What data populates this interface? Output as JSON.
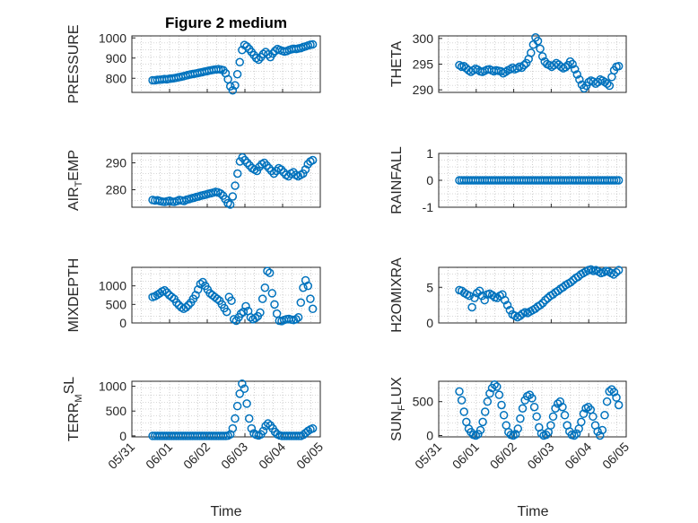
{
  "figure": {
    "title": "Figure 2 medium",
    "xlabel": "Time",
    "marker_color": "#0072BD",
    "axis_color": "#262626",
    "grid_color": "#b0b0b0"
  },
  "chart_data": [
    {
      "type": "scatter",
      "ylabel": "PRESSURE",
      "ylabel_sub": null,
      "xlim": [
        "05/31",
        "06/05"
      ],
      "ylim": [
        730,
        1010
      ],
      "yticks": [
        800,
        900,
        1000
      ],
      "x_day_range": [
        0.55,
        4.8
      ],
      "grid": true,
      "y": [
        790,
        790,
        792,
        793,
        794,
        796,
        795,
        797,
        799,
        800,
        802,
        805,
        807,
        810,
        813,
        816,
        819,
        821,
        823,
        825,
        828,
        830,
        833,
        835,
        838,
        840,
        842,
        844,
        845,
        843,
        840,
        825,
        795,
        760,
        740,
        765,
        820,
        880,
        940,
        965,
        958,
        945,
        930,
        915,
        900,
        892,
        905,
        920,
        930,
        918,
        905,
        922,
        935,
        945,
        940,
        936,
        932,
        935,
        940,
        944,
        946,
        945,
        948,
        950,
        955,
        958,
        962,
        966,
        968
      ]
    },
    {
      "type": "scatter",
      "ylabel": "THETA",
      "ylabel_sub": null,
      "xlim": [
        "05/31",
        "06/05"
      ],
      "ylim": [
        289.5,
        300.5
      ],
      "yticks": [
        290,
        295,
        300
      ],
      "x_day_range": [
        0.55,
        4.8
      ],
      "grid": true,
      "y": [
        294.8,
        294.5,
        294.6,
        294.2,
        293.8,
        293.5,
        293.8,
        294.1,
        293.9,
        293.6,
        293.5,
        293.7,
        293.9,
        294.0,
        293.8,
        293.6,
        293.8,
        293.7,
        293.6,
        293.2,
        293.5,
        293.8,
        294.0,
        294.3,
        294.0,
        294.2,
        294.5,
        294.3,
        294.8,
        295.2,
        296.0,
        297.2,
        298.8,
        300.2,
        299.5,
        298.0,
        296.5,
        295.5,
        295.0,
        294.8,
        294.5,
        294.8,
        295.2,
        294.9,
        294.5,
        294.2,
        294.4,
        294.8,
        295.5,
        295.0,
        294.0,
        293.0,
        292.0,
        291.0,
        290.3,
        290.8,
        291.5,
        291.8,
        291.6,
        291.2,
        291.5,
        292.0,
        291.8,
        291.5,
        291.2,
        290.8,
        292.5,
        293.8,
        294.5,
        294.6
      ]
    },
    {
      "type": "scatter",
      "ylabel": "AIR",
      "ylabel_sub": "T",
      "ylabel_suffix": "EMP",
      "xlim": [
        "05/31",
        "06/05"
      ],
      "ylim": [
        273.5,
        293.5
      ],
      "yticks": [
        280,
        290
      ],
      "x_day_range": [
        0.55,
        4.8
      ],
      "grid": true,
      "y": [
        276.2,
        276.0,
        276.1,
        275.8,
        275.6,
        275.5,
        275.7,
        275.9,
        275.6,
        275.5,
        275.8,
        276.2,
        276.0,
        275.8,
        276.3,
        276.5,
        276.8,
        277.0,
        277.3,
        277.5,
        277.8,
        278.0,
        278.2,
        278.5,
        278.7,
        278.9,
        279.2,
        279.0,
        278.6,
        277.8,
        276.5,
        275.0,
        274.5,
        277.5,
        281.5,
        286.0,
        290.5,
        292.0,
        291.0,
        290.0,
        289.0,
        288.0,
        287.5,
        287.0,
        288.5,
        289.5,
        290.0,
        289.0,
        288.0,
        287.0,
        286.0,
        287.0,
        288.0,
        287.5,
        286.5,
        285.5,
        285.0,
        286.0,
        286.5,
        285.5,
        285.0,
        285.5,
        286.0,
        287.5,
        289.5,
        290.5,
        291.0
      ]
    },
    {
      "type": "scatter",
      "ylabel": "RAINFALL",
      "ylabel_sub": null,
      "xlim": [
        "05/31",
        "06/05"
      ],
      "ylim": [
        -1,
        1
      ],
      "yticks": [
        -1,
        0,
        1
      ],
      "x_day_range": [
        0.55,
        4.8
      ],
      "grid": true,
      "constant_value": 0,
      "point_count": 70
    },
    {
      "type": "scatter",
      "ylabel": "MIXDEPTH",
      "ylabel_sub": null,
      "xlim": [
        "05/31",
        "06/05"
      ],
      "ylim": [
        0,
        1500
      ],
      "yticks": [
        0,
        500,
        1000
      ],
      "x_day_range": [
        0.55,
        4.8
      ],
      "grid": true,
      "y": [
        700,
        720,
        760,
        800,
        850,
        880,
        820,
        750,
        700,
        650,
        550,
        480,
        420,
        380,
        420,
        480,
        550,
        650,
        750,
        900,
        1050,
        1100,
        1000,
        900,
        800,
        750,
        700,
        650,
        600,
        500,
        400,
        300,
        700,
        600,
        100,
        60,
        150,
        250,
        300,
        450,
        320,
        150,
        100,
        130,
        180,
        280,
        650,
        950,
        1400,
        1350,
        800,
        500,
        250,
        60,
        50,
        80,
        100,
        110,
        90,
        80,
        100,
        150,
        550,
        950,
        1150,
        1000,
        650,
        380
      ]
    },
    {
      "type": "scatter",
      "ylabel": "H2OMIXRA",
      "ylabel_sub": null,
      "xlim": [
        "05/31",
        "06/05"
      ],
      "ylim": [
        0,
        7.8
      ],
      "yticks": [
        0,
        5
      ],
      "x_day_range": [
        0.55,
        4.8
      ],
      "grid": true,
      "y": [
        4.6,
        4.5,
        4.2,
        4.0,
        3.8,
        2.2,
        3.5,
        4.2,
        4.5,
        3.8,
        3.2,
        4.0,
        4.1,
        3.9,
        3.6,
        3.5,
        3.8,
        4.0,
        3.2,
        2.5,
        1.8,
        1.2,
        1.0,
        0.8,
        1.0,
        1.3,
        1.5,
        1.4,
        1.6,
        1.8,
        2.0,
        2.3,
        2.5,
        2.8,
        3.2,
        3.5,
        3.8,
        4.0,
        4.3,
        4.5,
        4.8,
        5.0,
        5.3,
        5.5,
        5.7,
        6.0,
        6.3,
        6.5,
        6.8,
        7.0,
        7.2,
        7.4,
        7.5,
        7.3,
        7.4,
        7.2,
        7.0,
        7.1,
        7.3,
        7.2,
        7.0,
        6.8,
        7.1,
        7.4
      ]
    },
    {
      "type": "scatter",
      "ylabel": "TERR",
      "ylabel_sub": "M",
      "ylabel_sup": "SL",
      "xlim": [
        "05/31",
        "06/05"
      ],
      "ylim": [
        -20,
        1100
      ],
      "yticks": [
        0,
        500,
        1000
      ],
      "x_day_range": [
        0.55,
        4.8
      ],
      "grid": true,
      "y": [
        0,
        0,
        0,
        0,
        0,
        0,
        0,
        0,
        0,
        0,
        0,
        0,
        0,
        0,
        0,
        0,
        0,
        0,
        0,
        0,
        0,
        0,
        0,
        0,
        0,
        0,
        0,
        0,
        0,
        0,
        0,
        0,
        5,
        30,
        150,
        350,
        600,
        850,
        1050,
        950,
        650,
        350,
        150,
        50,
        20,
        10,
        30,
        100,
        200,
        250,
        210,
        150,
        80,
        30,
        10,
        0,
        0,
        0,
        0,
        0,
        0,
        0,
        0,
        0,
        20,
        60,
        100,
        130,
        150
      ]
    },
    {
      "type": "scatter",
      "ylabel": "SUN",
      "ylabel_sub": "F",
      "ylabel_suffix": "LUX",
      "xlim": [
        "05/31",
        "06/05"
      ],
      "ylim": [
        -20,
        800
      ],
      "yticks": [
        0,
        500
      ],
      "x_day_range": [
        0.55,
        4.8
      ],
      "grid": true,
      "y": [
        650,
        520,
        350,
        200,
        100,
        50,
        10,
        0,
        20,
        80,
        200,
        350,
        500,
        620,
        700,
        750,
        720,
        600,
        450,
        300,
        150,
        50,
        10,
        0,
        20,
        100,
        250,
        400,
        520,
        580,
        600,
        550,
        420,
        280,
        120,
        30,
        0,
        10,
        50,
        150,
        280,
        400,
        470,
        500,
        420,
        300,
        150,
        60,
        10,
        0,
        30,
        100,
        200,
        320,
        400,
        420,
        380,
        280,
        150,
        60,
        0,
        80,
        300,
        500,
        650,
        680,
        640,
        560,
        450
      ]
    }
  ]
}
